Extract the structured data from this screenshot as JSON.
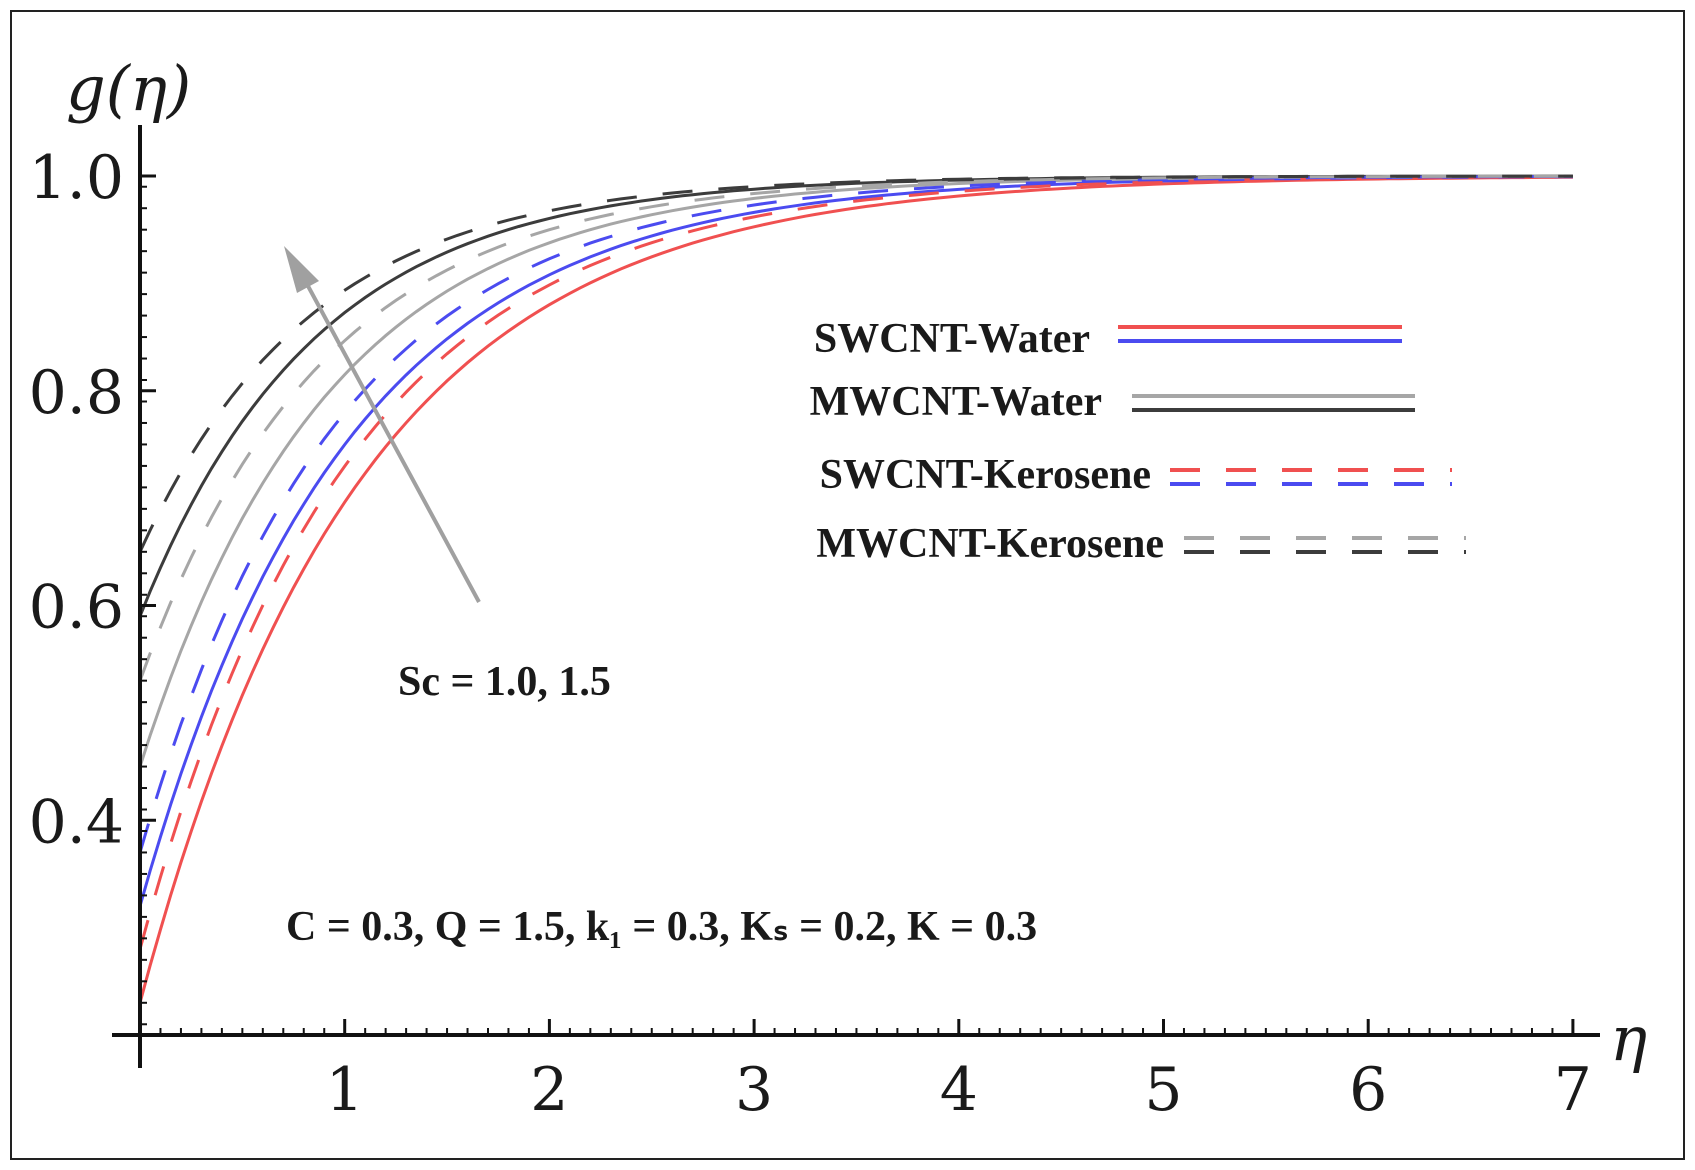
{
  "chart_data": {
    "type": "line",
    "title": "",
    "xlabel": "η",
    "ylabel": "g(η)",
    "xlim": [
      0,
      7
    ],
    "ylim": [
      0.2,
      1.0
    ],
    "x_ticks": [
      1,
      2,
      3,
      4,
      5,
      6,
      7
    ],
    "y_ticks": [
      0.4,
      0.6,
      0.8,
      1.0
    ],
    "x_tick_labels": [
      "1",
      "2",
      "3",
      "4",
      "5",
      "6",
      "7"
    ],
    "y_tick_labels": [
      "0.4",
      "0.6",
      "0.8",
      "1.0"
    ],
    "colors": {
      "swcnt_sc1": "#f05050",
      "swcnt_sc2": "#4b4bf0",
      "mwcnt_sc1": "#a6a6a6",
      "mwcnt_sc2": "#3c3c3c"
    },
    "series": [
      {
        "name": "SWCNT-Water, Sc = 1.0",
        "nanotube": "SWCNT",
        "fluid": "Water",
        "Sc": 1.0,
        "style": "solid",
        "color": "#f05050",
        "g0": 0.23,
        "decay": 0.93
      },
      {
        "name": "SWCNT-Water, Sc = 1.5",
        "nanotube": "SWCNT",
        "fluid": "Water",
        "Sc": 1.5,
        "style": "solid",
        "color": "#4b4bf0",
        "g0": 0.32,
        "decay": 1.0
      },
      {
        "name": "MWCNT-Water, Sc = 1.0",
        "nanotube": "MWCNT",
        "fluid": "Water",
        "Sc": 1.0,
        "style": "solid",
        "color": "#a6a6a6",
        "g0": 0.45,
        "decay": 1.09
      },
      {
        "name": "MWCNT-Water, Sc = 1.5",
        "nanotube": "MWCNT",
        "fluid": "Water",
        "Sc": 1.5,
        "style": "solid",
        "color": "#3c3c3c",
        "g0": 0.59,
        "decay": 1.17
      },
      {
        "name": "SWCNT-Kerosene, Sc = 1.0",
        "nanotube": "SWCNT",
        "fluid": "Kerosene",
        "Sc": 1.0,
        "style": "dashed",
        "color": "#f05050",
        "g0": 0.28,
        "decay": 0.98
      },
      {
        "name": "SWCNT-Kerosene, Sc = 1.5",
        "nanotube": "SWCNT",
        "fluid": "Kerosene",
        "Sc": 1.5,
        "style": "dashed",
        "color": "#4b4bf0",
        "g0": 0.37,
        "decay": 1.05
      },
      {
        "name": "MWCNT-Kerosene, Sc = 1.0",
        "nanotube": "MWCNT",
        "fluid": "Kerosene",
        "Sc": 1.0,
        "style": "dashed",
        "color": "#a6a6a6",
        "g0": 0.53,
        "decay": 1.12
      },
      {
        "name": "MWCNT-Kerosene, Sc = 1.5",
        "nanotube": "MWCNT",
        "fluid": "Kerosene",
        "Sc": 1.5,
        "style": "dashed",
        "color": "#3c3c3c",
        "g0": 0.65,
        "decay": 1.19
      }
    ],
    "legend": [
      {
        "label": "SWCNT-Water",
        "style": "solid",
        "colors": [
          "#f05050",
          "#4b4bf0"
        ]
      },
      {
        "label": "MWCNT-Water",
        "style": "solid",
        "colors": [
          "#a6a6a6",
          "#3c3c3c"
        ]
      },
      {
        "label": "SWCNT-Kerosene",
        "style": "dashed",
        "colors": [
          "#f05050",
          "#4b4bf0"
        ]
      },
      {
        "label": "MWCNT-Kerosene",
        "style": "dashed",
        "colors": [
          "#a6a6a6",
          "#3c3c3c"
        ]
      }
    ],
    "annotations": {
      "arrow_label": "Sc = 1.0, 1.5",
      "params_label": "C = 0.3, Q = 1.5, k₁ = 0.3, Kₛ = 0.2, K = 0.3",
      "params": {
        "C": 0.3,
        "Q": 1.5,
        "k1": 0.3,
        "Ks": 0.2,
        "K": 0.3
      }
    }
  }
}
